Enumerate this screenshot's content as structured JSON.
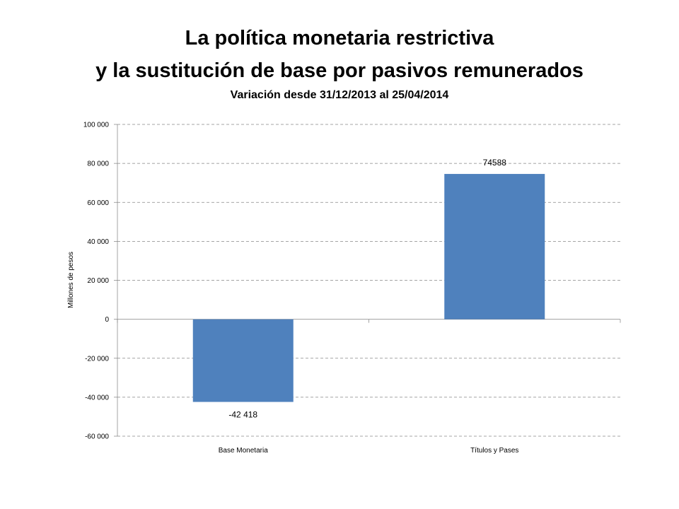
{
  "chart_data": {
    "type": "bar",
    "title_line1": "La política monetaria restrictiva",
    "title_line2": "y la sustitución de base por pasivos remunerados",
    "subtitle": "Variación desde 31/12/2013 al 25/04/2014",
    "xlabel": "",
    "ylabel": "Millones de pesos",
    "categories": [
      "Base Monetaria",
      "Títulos y Pases"
    ],
    "values": [
      -42418,
      74588
    ],
    "data_labels": [
      "-42 418",
      "74588"
    ],
    "ylim": [
      -60000,
      100000
    ],
    "yticks": [
      100000,
      80000,
      60000,
      40000,
      20000,
      0,
      -20000,
      -40000,
      -60000
    ],
    "ytick_labels": [
      "100 000",
      "80 000",
      "60 000",
      "40 000",
      "20 000",
      "0",
      "-20 000",
      "-40 000",
      "-60 000"
    ],
    "grid": true,
    "bar_color": "#4f81bd",
    "grid_color": "#868686"
  }
}
